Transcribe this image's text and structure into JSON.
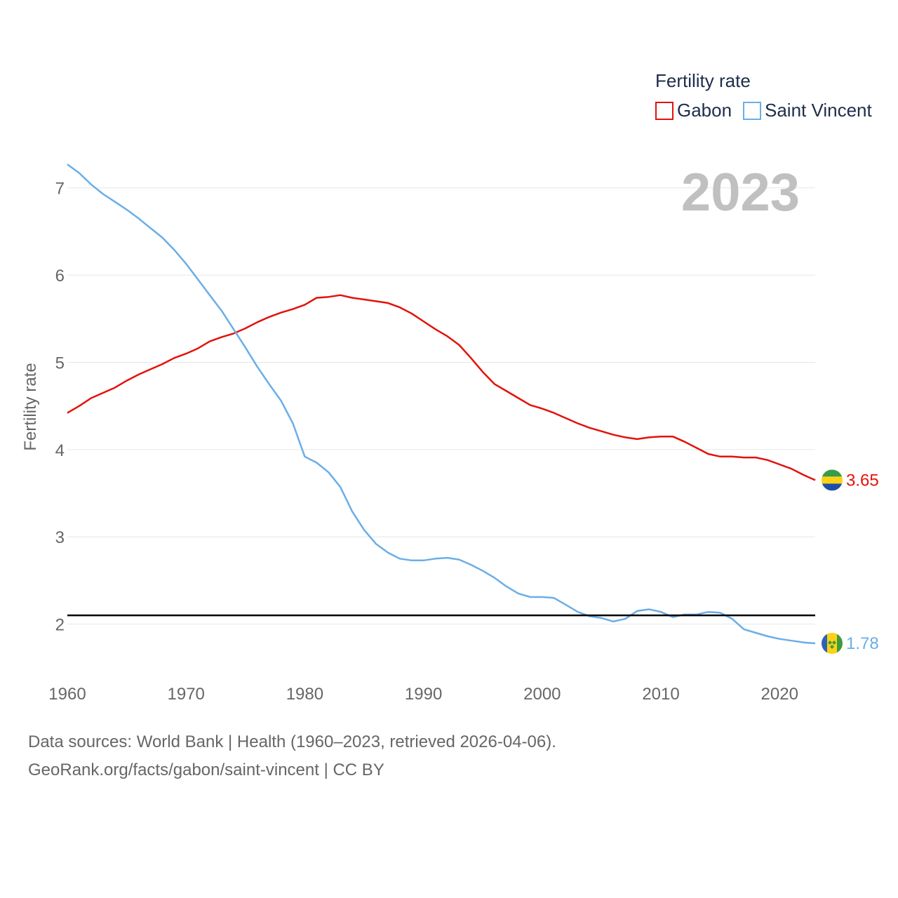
{
  "chart_data": {
    "type": "line",
    "year_label": "2023",
    "ylabel": "Fertility rate",
    "xlabel": "",
    "ylim": [
      1.45,
      7.4
    ],
    "xlim": [
      1960,
      2023
    ],
    "yticks": [
      2,
      3,
      4,
      5,
      6,
      7
    ],
    "xticks": [
      1960,
      1970,
      1980,
      1990,
      2000,
      2010,
      2020
    ],
    "grid": true,
    "legend": {
      "title": "Fertility rate",
      "placement": "top-right"
    },
    "reference_line": {
      "value": 2.1,
      "color": "#000000"
    },
    "x": [
      1960,
      1961,
      1962,
      1963,
      1964,
      1965,
      1966,
      1967,
      1968,
      1969,
      1970,
      1971,
      1972,
      1973,
      1974,
      1975,
      1976,
      1977,
      1978,
      1979,
      1980,
      1981,
      1982,
      1983,
      1984,
      1985,
      1986,
      1987,
      1988,
      1989,
      1990,
      1991,
      1992,
      1993,
      1994,
      1995,
      1996,
      1997,
      1998,
      1999,
      2000,
      2001,
      2002,
      2003,
      2004,
      2005,
      2006,
      2007,
      2008,
      2009,
      2010,
      2011,
      2012,
      2013,
      2014,
      2015,
      2016,
      2017,
      2018,
      2019,
      2020,
      2021,
      2022,
      2023
    ],
    "series": [
      {
        "name": "Gabon",
        "color": "#e3120b",
        "end_label": "3.65",
        "flag": "gabon",
        "values": [
          4.42,
          4.5,
          4.59,
          4.65,
          4.71,
          4.79,
          4.86,
          4.92,
          4.98,
          5.05,
          5.1,
          5.16,
          5.24,
          5.29,
          5.33,
          5.39,
          5.46,
          5.52,
          5.57,
          5.61,
          5.66,
          5.74,
          5.75,
          5.77,
          5.74,
          5.72,
          5.7,
          5.68,
          5.63,
          5.56,
          5.47,
          5.38,
          5.3,
          5.2,
          5.05,
          4.89,
          4.75,
          4.67,
          4.59,
          4.51,
          4.47,
          4.42,
          4.36,
          4.3,
          4.25,
          4.21,
          4.17,
          4.14,
          4.12,
          4.14,
          4.15,
          4.15,
          4.09,
          4.02,
          3.95,
          3.92,
          3.92,
          3.91,
          3.91,
          3.88,
          3.83,
          3.78,
          3.71,
          3.65
        ]
      },
      {
        "name": "Saint Vincent",
        "color": "#6aaee8",
        "end_label": "1.78",
        "flag": "saint-vincent",
        "values": [
          7.27,
          7.17,
          7.04,
          6.93,
          6.84,
          6.75,
          6.65,
          6.54,
          6.43,
          6.29,
          6.13,
          5.95,
          5.77,
          5.59,
          5.38,
          5.17,
          4.95,
          4.75,
          4.56,
          4.3,
          3.92,
          3.85,
          3.74,
          3.57,
          3.29,
          3.08,
          2.92,
          2.82,
          2.75,
          2.73,
          2.73,
          2.75,
          2.76,
          2.74,
          2.68,
          2.61,
          2.53,
          2.43,
          2.35,
          2.31,
          2.31,
          2.3,
          2.22,
          2.14,
          2.09,
          2.07,
          2.03,
          2.06,
          2.15,
          2.17,
          2.14,
          2.08,
          2.11,
          2.11,
          2.14,
          2.13,
          2.06,
          1.94,
          1.9,
          1.86,
          1.83,
          1.81,
          1.79,
          1.78
        ]
      }
    ]
  },
  "source": {
    "line1": "Data sources: World Bank | Health (1960–2023, retrieved 2026-04-06).",
    "line2": "GeoRank.org/facts/gabon/saint-vincent | CC BY"
  }
}
